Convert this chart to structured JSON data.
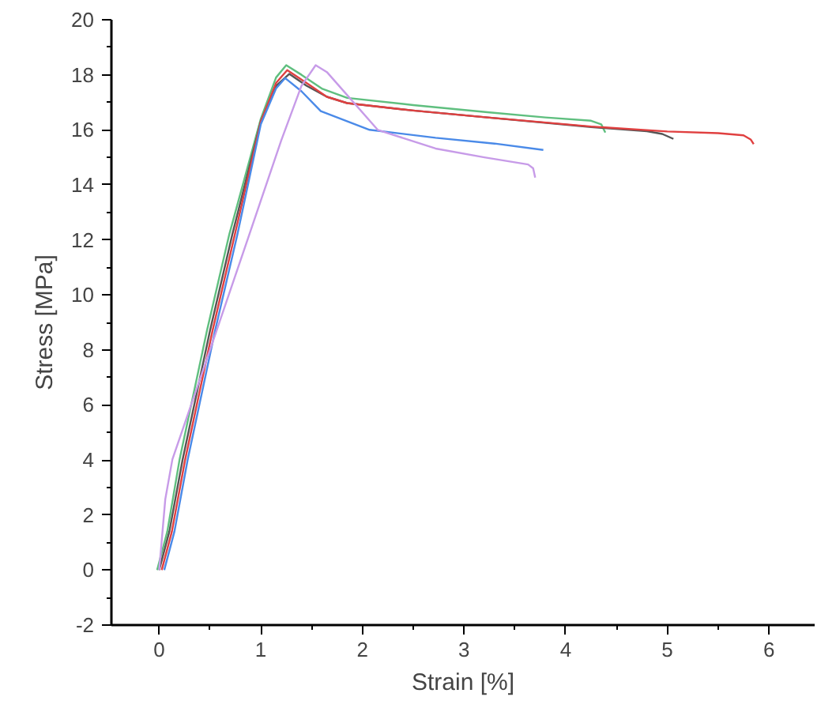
{
  "chart_data": {
    "type": "line",
    "xlabel": "Strain [%]",
    "ylabel": "Stress [MPa]",
    "xlim": [
      -0.47,
      6.45
    ],
    "ylim": [
      -2,
      20
    ],
    "xticks": [
      0,
      {
        "value": 0.5,
        "label": null
      },
      1,
      {
        "value": 1.5,
        "label": null
      },
      2,
      {
        "value": 2.5,
        "label": null
      },
      3,
      {
        "value": 3.5,
        "label": null
      },
      4,
      {
        "value": 4.5,
        "label": null
      },
      5,
      {
        "value": 5.5,
        "label": null
      },
      6
    ],
    "yticks": [
      -2,
      {
        "value": -1,
        "label": null
      },
      0,
      {
        "value": 1,
        "label": null
      },
      2,
      {
        "value": 3,
        "label": null
      },
      4,
      {
        "value": 5,
        "label": null
      },
      6,
      {
        "value": 7,
        "label": null
      },
      8,
      {
        "value": 9,
        "label": null
      },
      10,
      {
        "value": 11,
        "label": null
      },
      12,
      {
        "value": 13,
        "label": null
      },
      14,
      {
        "value": 15,
        "label": null
      },
      16,
      {
        "value": 17,
        "label": null
      },
      18,
      {
        "value": 19,
        "label": null
      },
      20
    ],
    "grid": false,
    "marker": "none",
    "line_style": "solid",
    "series": [
      {
        "color": "#5fbf7f",
        "x": [
          -0.02,
          0.08,
          0.2,
          0.47,
          0.69,
          1.0,
          1.15,
          1.25,
          1.4,
          1.6,
          1.85,
          2.5,
          3.23,
          3.8,
          4.25,
          4.35,
          4.39
        ],
        "values": [
          0,
          1.4,
          4.0,
          8.7,
          12.2,
          16.4,
          17.9,
          18.35,
          18.0,
          17.5,
          17.16,
          16.9,
          16.64,
          16.45,
          16.33,
          16.2,
          15.9
        ]
      },
      {
        "color": "#555555",
        "x": [
          0,
          0.1,
          0.23,
          0.5,
          0.72,
          1.0,
          1.15,
          1.28,
          1.45,
          1.65,
          1.85,
          2.5,
          3.23,
          4.25,
          4.8,
          4.95,
          5.06
        ],
        "values": [
          0,
          1.4,
          4.0,
          8.7,
          12.2,
          16.3,
          17.6,
          18.03,
          17.6,
          17.2,
          16.97,
          16.7,
          16.45,
          16.1,
          15.95,
          15.85,
          15.67
        ]
      },
      {
        "color": "#e04040",
        "x": [
          0.025,
          0.125,
          0.255,
          0.525,
          0.745,
          1.0,
          1.15,
          1.26,
          1.45,
          1.65,
          1.85,
          2.5,
          3.23,
          4.25,
          5.0,
          5.5,
          5.75,
          5.82,
          5.85
        ],
        "values": [
          0,
          1.4,
          4.0,
          8.7,
          12.2,
          16.3,
          17.7,
          18.17,
          17.7,
          17.2,
          16.97,
          16.7,
          16.45,
          16.12,
          15.94,
          15.88,
          15.8,
          15.65,
          15.48
        ]
      },
      {
        "color": "#4a8ae8",
        "x": [
          0.05,
          0.15,
          0.28,
          0.55,
          0.77,
          1.0,
          1.15,
          1.24,
          1.4,
          1.59,
          2.07,
          2.72,
          3.3,
          3.78
        ],
        "values": [
          0,
          1.4,
          4.0,
          8.7,
          12.2,
          16.2,
          17.5,
          17.88,
          17.4,
          16.68,
          16.0,
          15.71,
          15.5,
          15.27
        ]
      },
      {
        "color": "#c79be8",
        "x": [
          0,
          0.06,
          0.13,
          0.5,
          0.89,
          1.2,
          1.4,
          1.54,
          1.65,
          1.85,
          2.15,
          2.72,
          3.2,
          3.63,
          3.68,
          3.7
        ],
        "values": [
          0,
          2.57,
          4.02,
          8.0,
          12.23,
          15.6,
          17.6,
          18.35,
          18.1,
          17.26,
          16.0,
          15.32,
          15.0,
          14.74,
          14.6,
          14.26
        ]
      }
    ]
  }
}
